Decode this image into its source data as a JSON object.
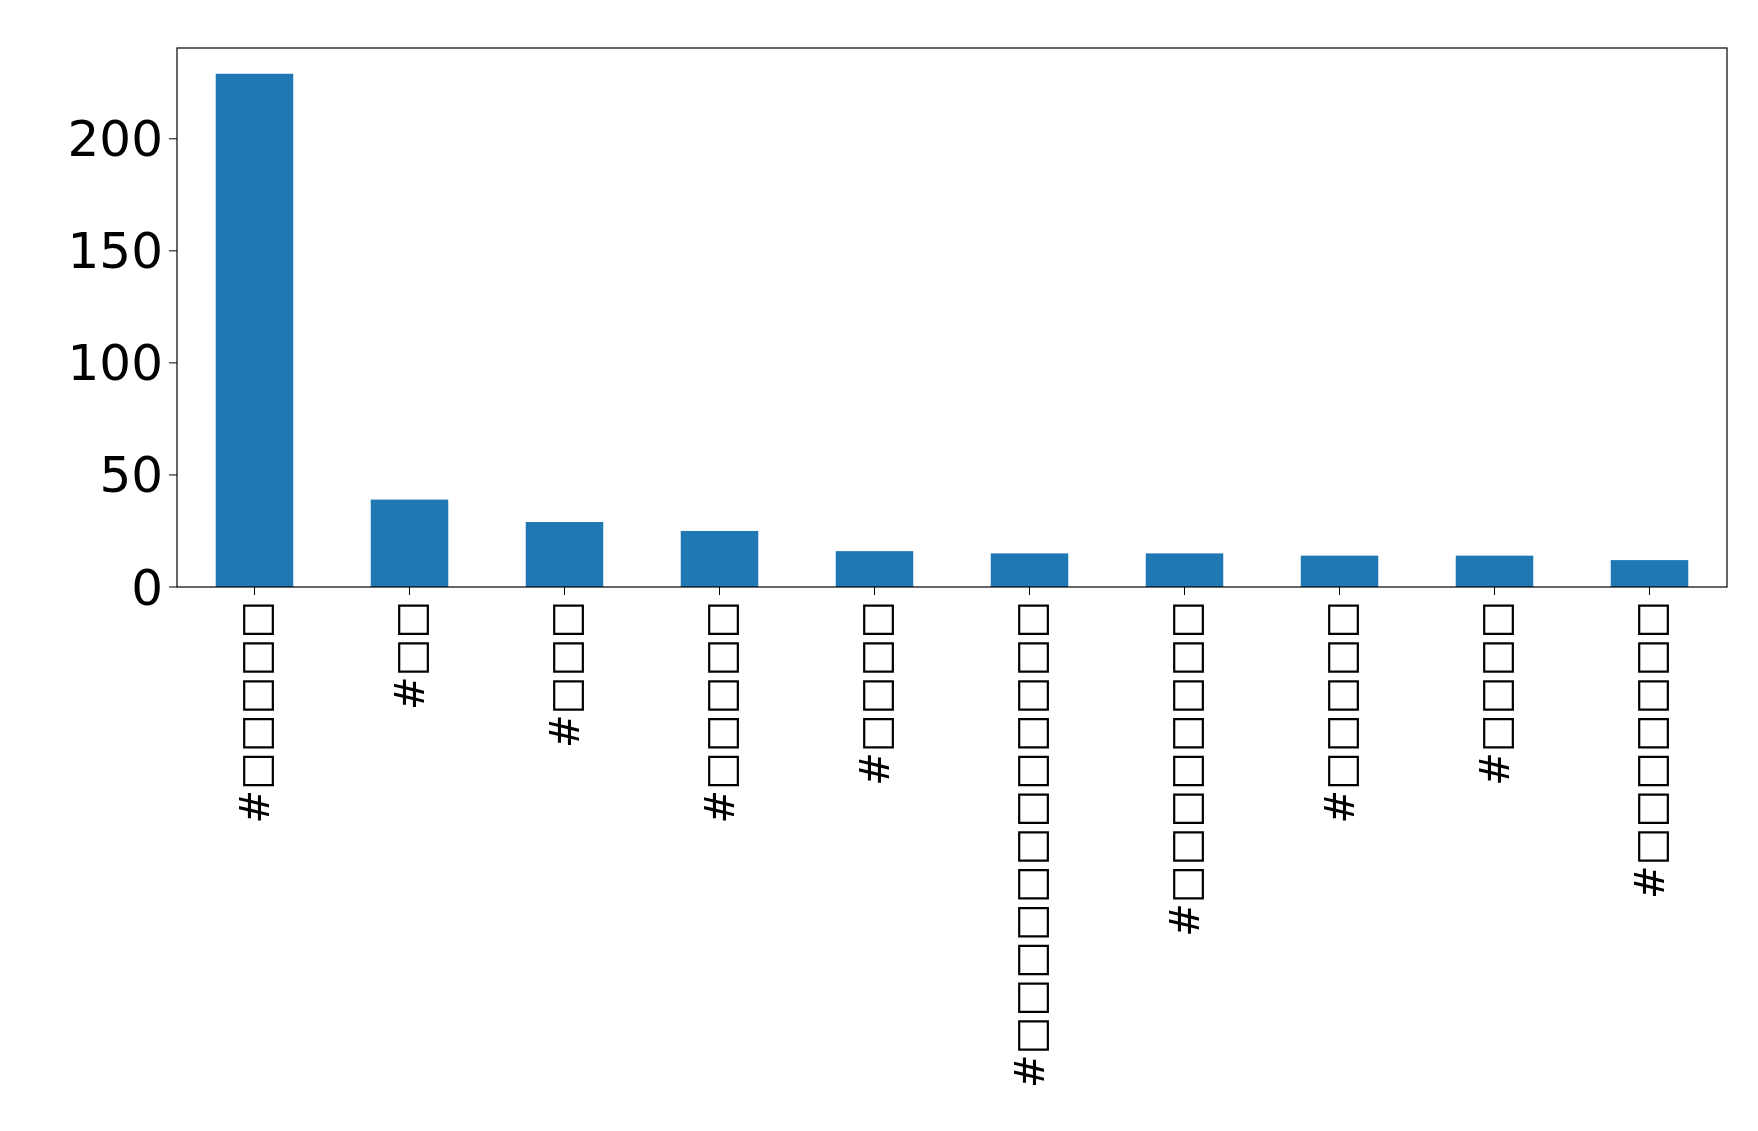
{
  "chart_data": {
    "type": "bar",
    "categories": [
      "#□□□□□",
      "#□□",
      "#□□□",
      "#□□□□□",
      "#□□□□",
      "#□□□□□□□□□□□□",
      "#□□□□□□□□",
      "#□□□□□",
      "#□□□□",
      "#□□□□□□□"
    ],
    "values": [
      229,
      39,
      29,
      25,
      16,
      15,
      15,
      14,
      14,
      12
    ],
    "color": "#1f77b4",
    "ylim": [
      0,
      240.5
    ],
    "yticks": [
      0,
      50,
      100,
      150,
      200
    ],
    "grid": false
  }
}
